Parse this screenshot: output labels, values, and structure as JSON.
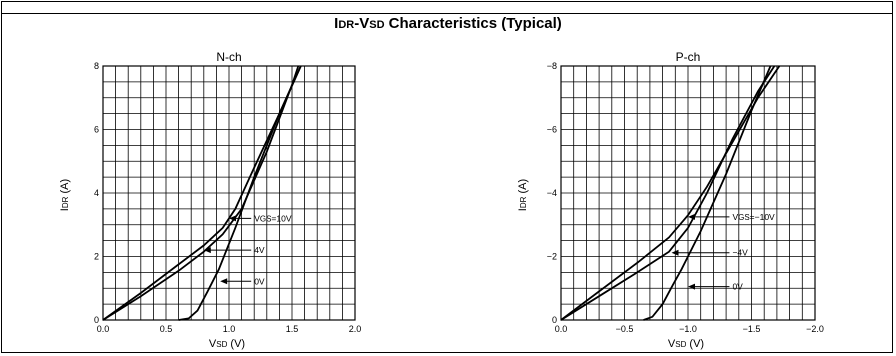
{
  "title": {
    "main": "I",
    "sub": "DR",
    "mid": "-V",
    "sub2": "SD",
    "rest": " Characteristics (Typical)"
  },
  "chart_data": [
    {
      "type": "line",
      "title": "N-ch",
      "xlabel": {
        "main": "V",
        "sub": "SD",
        "rest": "  (V)"
      },
      "ylabel": {
        "main": "I",
        "sub": "DR",
        "rest": "  (A)"
      },
      "xlim": [
        0,
        2
      ],
      "ylim": [
        0,
        8
      ],
      "x_ticks": [
        0,
        0.5,
        1,
        1.5,
        2
      ],
      "x_tick_labels": [
        "0.0",
        "0.5",
        "1.0",
        "1.5",
        "2.0"
      ],
      "y_ticks": [
        0,
        2,
        4,
        6,
        8
      ],
      "y_tick_labels": [
        "0",
        "2",
        "4",
        "6",
        "8"
      ],
      "grid": true,
      "series": [
        {
          "name": "VGS=10V",
          "x": [
            0,
            0.3,
            0.6,
            0.8,
            0.95,
            1.05,
            1.2,
            1.4,
            1.57
          ],
          "y": [
            0,
            0.85,
            1.75,
            2.35,
            2.9,
            3.5,
            4.8,
            6.5,
            8
          ]
        },
        {
          "name": "4V",
          "x": [
            0,
            0.3,
            0.6,
            0.8,
            0.95,
            1.1,
            1.3,
            1.5,
            1.55
          ],
          "y": [
            0,
            0.75,
            1.55,
            2.15,
            2.7,
            3.5,
            5.3,
            7.4,
            8
          ]
        },
        {
          "name": "0V",
          "x": [
            0.6,
            0.68,
            0.75,
            0.83,
            0.92,
            1.05,
            1.2,
            1.4,
            1.57
          ],
          "y": [
            0,
            0.05,
            0.3,
            0.9,
            1.6,
            2.9,
            4.5,
            6.5,
            8
          ]
        }
      ],
      "annotations": [
        {
          "text": "V",
          "sub": "GS",
          "rest": "=10V",
          "point": [
            1.0,
            3.2
          ],
          "label_x": 1.2,
          "label_y": 3.2
        },
        {
          "text": "4V",
          "point": [
            0.8,
            2.2
          ],
          "label_x": 1.2,
          "label_y": 2.2
        },
        {
          "text": "0V",
          "point": [
            0.93,
            1.22
          ],
          "label_x": 1.2,
          "label_y": 1.22
        }
      ]
    },
    {
      "type": "line",
      "title": "P-ch",
      "xlabel": {
        "main": "V",
        "sub": "SD",
        "rest": "  (V)"
      },
      "ylabel": {
        "main": "I",
        "sub": "DR",
        "rest": "  (A)"
      },
      "xlim": [
        0,
        -2
      ],
      "ylim": [
        0,
        -8
      ],
      "x_ticks": [
        0,
        -0.5,
        -1,
        -1.5,
        -2
      ],
      "x_tick_labels": [
        "0.0",
        "−0.5",
        "−1.0",
        "−1.5",
        "−2.0"
      ],
      "y_ticks": [
        0,
        -2,
        -4,
        -6,
        -8
      ],
      "y_tick_labels": [
        "0",
        "−2",
        "−4",
        "−6",
        "−8"
      ],
      "grid": true,
      "series": [
        {
          "name": "VGS=−10V",
          "x": [
            0,
            -0.3,
            -0.6,
            -0.85,
            -1.0,
            -1.15,
            -1.35,
            -1.55,
            -1.72
          ],
          "y": [
            0,
            -0.9,
            -1.8,
            -2.6,
            -3.3,
            -4.2,
            -5.6,
            -7.0,
            -8
          ]
        },
        {
          "name": "−4V",
          "x": [
            0,
            -0.3,
            -0.6,
            -0.85,
            -1.0,
            -1.15,
            -1.35,
            -1.55,
            -1.68
          ],
          "y": [
            0,
            -0.75,
            -1.5,
            -2.15,
            -2.9,
            -4.0,
            -5.7,
            -7.2,
            -8
          ]
        },
        {
          "name": "0V",
          "x": [
            -0.65,
            -0.72,
            -0.8,
            -0.88,
            -0.95,
            -1.1,
            -1.3,
            -1.5,
            -1.65
          ],
          "y": [
            0,
            -0.1,
            -0.5,
            -1.1,
            -1.6,
            -2.8,
            -4.6,
            -6.6,
            -8
          ]
        }
      ],
      "annotations": [
        {
          "text": "V",
          "sub": "GS",
          "rest": "=−10V",
          "point": [
            -1.0,
            -3.25
          ],
          "label_x": -1.35,
          "label_y": -3.25
        },
        {
          "text": "−4V",
          "point": [
            -0.87,
            -2.12
          ],
          "label_x": -1.35,
          "label_y": -2.12
        },
        {
          "text": "0V",
          "point": [
            -1.0,
            -1.05
          ],
          "label_x": -1.35,
          "label_y": -1.05
        }
      ]
    }
  ]
}
